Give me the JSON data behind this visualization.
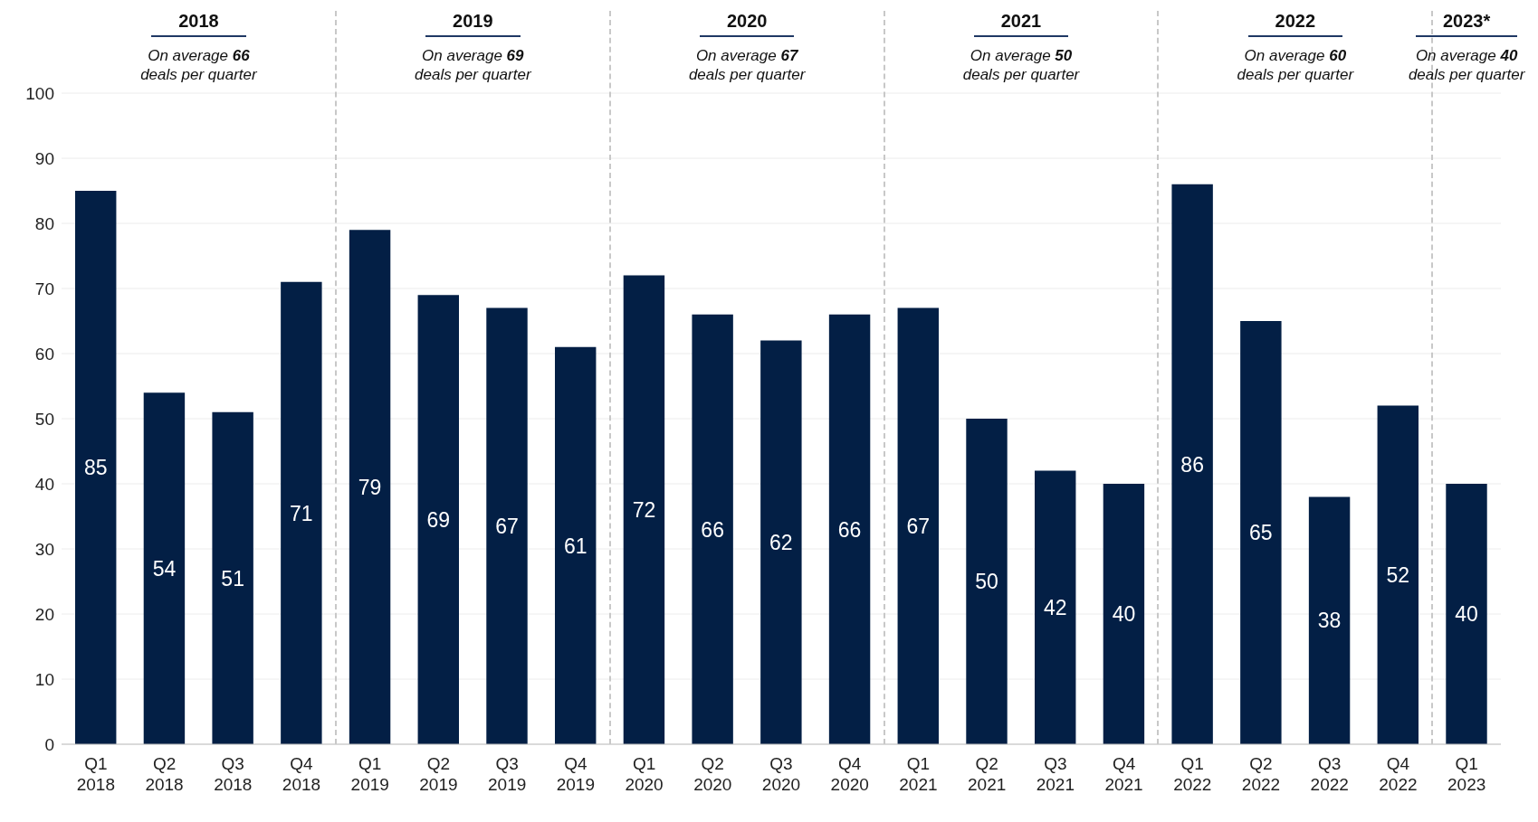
{
  "chart_data": {
    "type": "bar",
    "categories": [
      "Q1 2018",
      "Q2 2018",
      "Q3 2018",
      "Q4 2018",
      "Q1 2019",
      "Q2 2019",
      "Q3 2019",
      "Q4 2019",
      "Q1 2020",
      "Q2 2020",
      "Q3 2020",
      "Q4 2020",
      "Q1 2021",
      "Q2 2021",
      "Q3 2021",
      "Q4 2021",
      "Q1 2022",
      "Q2 2022",
      "Q3 2022",
      "Q4 2022",
      "Q1 2023"
    ],
    "values": [
      85,
      54,
      51,
      71,
      79,
      69,
      67,
      61,
      72,
      66,
      62,
      66,
      67,
      50,
      42,
      40,
      86,
      65,
      38,
      52,
      40
    ],
    "color": "#031f45",
    "data_labels": true,
    "ylim": [
      0,
      100
    ],
    "yticks": [
      0,
      10,
      20,
      30,
      40,
      50,
      60,
      70,
      80,
      90,
      100
    ],
    "grid": "y",
    "annotations": [
      "2018",
      "On average 66 deals per quarter",
      "2019",
      "On average 69 deals per quarter",
      "2020",
      "On average 67 deals per quarter",
      "2021",
      "On average 50 deals per quarter",
      "2022",
      "On average 60 deals per quarter",
      "2023*",
      "On average 40 deals per quarter"
    ]
  }
}
